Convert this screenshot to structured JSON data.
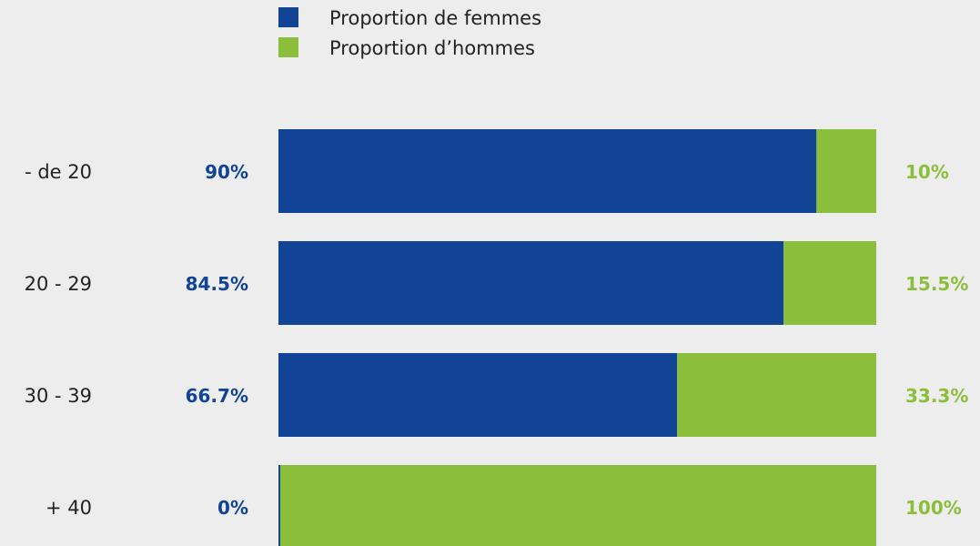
{
  "chart_data": {
    "type": "bar",
    "stacked": true,
    "orientation": "horizontal",
    "normalized_percent": true,
    "categories": [
      "- de 20",
      "20 - 29",
      "30 - 39",
      "+ 40"
    ],
    "series": [
      {
        "name": "Proportion de femmes",
        "color": "#114494",
        "values": [
          90,
          84.5,
          66.7,
          0
        ],
        "value_labels": [
          "90%",
          "84.5%",
          "66.7%",
          "0%"
        ]
      },
      {
        "name": "Proportion d’hommes",
        "color": "#8bbe3b",
        "values": [
          10,
          15.5,
          33.3,
          100
        ],
        "value_labels": [
          "10%",
          "15.5%",
          "33.3%",
          "100%"
        ]
      }
    ],
    "xlim": [
      0,
      100
    ],
    "grid": false,
    "legend_position": "top"
  },
  "colors": {
    "background": "#ededed",
    "category_text": "#222222"
  }
}
